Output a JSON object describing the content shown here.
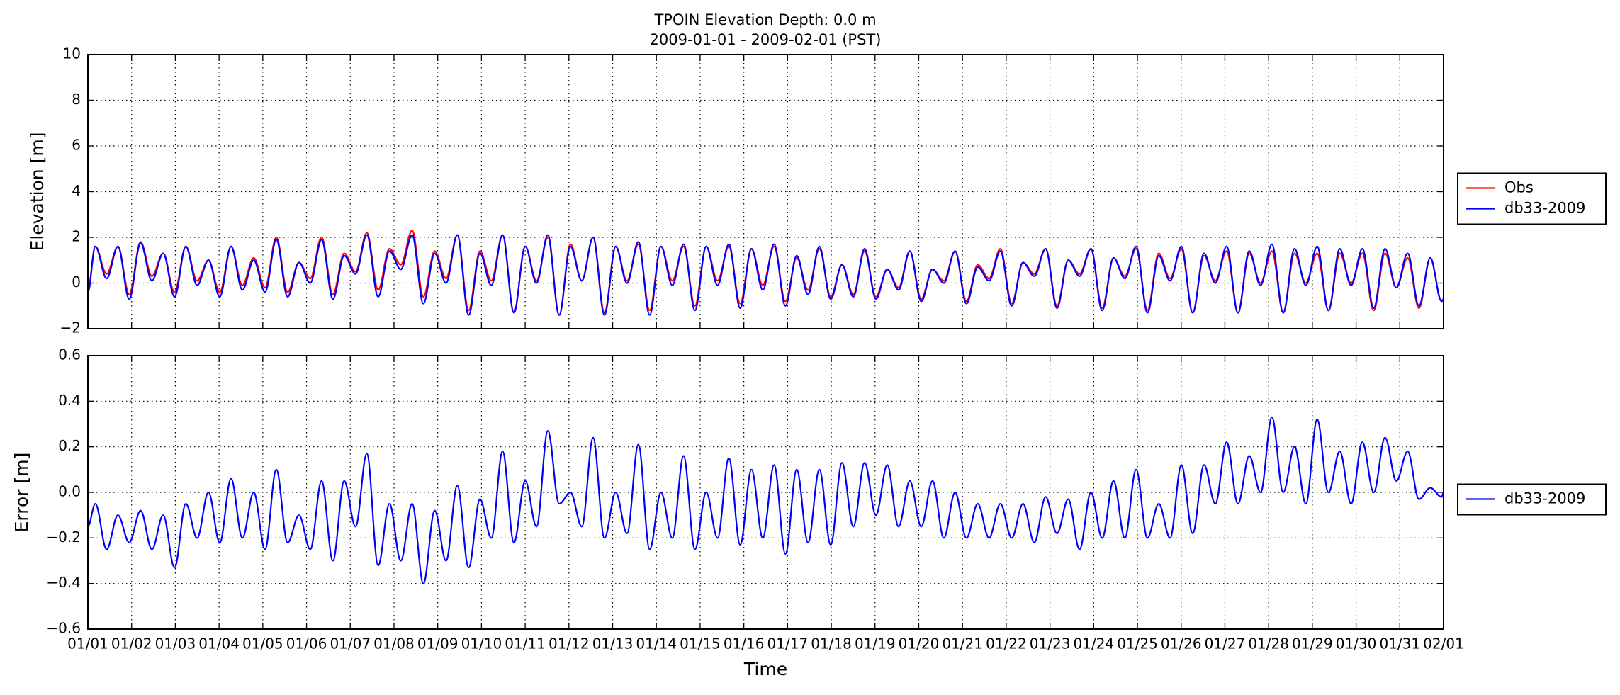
{
  "chart_data": [
    {
      "type": "line",
      "title": "TPOIN Elevation Depth: 0.0 m",
      "subtitle": "2009-01-01 - 2009-02-01 (PST)",
      "ylabel": "Elevation [m]",
      "xlim": [
        0,
        31
      ],
      "xticks": [
        0,
        1,
        2,
        3,
        4,
        5,
        6,
        7,
        8,
        9,
        10,
        11,
        12,
        13,
        14,
        15,
        16,
        17,
        18,
        19,
        20,
        21,
        22,
        23,
        24,
        25,
        26,
        27,
        28,
        29,
        30,
        31
      ],
      "ylim": [
        -2,
        10
      ],
      "yticks": [
        {
          "value": -2,
          "label": "−2"
        },
        0,
        2,
        4,
        6,
        8,
        10
      ],
      "grid": true,
      "legend": "outside right",
      "x": [
        0,
        0.17,
        0.429,
        0.687,
        0.946,
        1.205,
        1.464,
        1.722,
        1.981,
        2.24,
        2.498,
        2.757,
        3.016,
        3.274,
        3.533,
        3.792,
        4.051,
        4.309,
        4.568,
        4.827,
        5.085,
        5.344,
        5.603,
        5.861,
        6.12,
        6.379,
        6.638,
        6.896,
        7.155,
        7.414,
        7.672,
        7.931,
        8.19,
        8.448,
        8.707,
        8.966,
        9.225,
        9.483,
        9.742,
        10.001,
        10.259,
        10.518,
        10.777,
        11.035,
        11.294,
        11.553,
        11.812,
        12.07,
        12.329,
        12.588,
        12.846,
        13.105,
        13.364,
        13.622,
        13.881,
        14.14,
        14.399,
        14.657,
        14.916,
        15.175,
        15.433,
        15.692,
        15.951,
        16.209,
        16.468,
        16.727,
        16.986,
        17.244,
        17.503,
        17.762,
        18.02,
        18.279,
        18.538,
        18.796,
        19.055,
        19.314,
        19.573,
        19.831,
        20.09,
        20.349,
        20.607,
        20.866,
        21.125,
        21.383,
        21.642,
        21.901,
        22.16,
        22.418,
        22.677,
        22.936,
        23.194,
        23.453,
        23.712,
        23.97,
        24.229,
        24.488,
        24.747,
        25.005,
        25.264,
        25.523,
        25.781,
        26.04,
        26.299,
        26.557,
        26.816,
        27.075,
        27.334,
        27.592,
        27.851,
        28.11,
        28.368,
        28.627,
        28.886,
        29.144,
        29.403,
        29.662,
        29.921,
        30.179,
        30.438,
        30.697,
        30.955,
        31
      ],
      "series": [
        {
          "name": "Obs",
          "color": "#ff0000",
          "values": [
            -0.3,
            1.6,
            0.4,
            1.6,
            -0.5,
            1.8,
            0.3,
            1.3,
            -0.4,
            1.6,
            0.1,
            1.0,
            -0.4,
            1.6,
            -0.1,
            1.1,
            -0.2,
            2.0,
            -0.4,
            0.9,
            0.2,
            2.0,
            -0.5,
            1.3,
            0.5,
            2.2,
            -0.3,
            1.5,
            0.8,
            2.3,
            -0.6,
            1.4,
            0.2,
            2.1,
            -1.2,
            1.4,
            0.1,
            2.1,
            -1.3,
            1.6,
            0.1,
            2.0,
            -1.4,
            1.7,
            0.1,
            2.0,
            -1.3,
            1.6,
            0.1,
            1.7,
            -1.2,
            1.6,
            0.1,
            1.6,
            -1.0,
            1.6,
            0.1,
            1.6,
            -0.9,
            1.5,
            -0.1,
            1.6,
            -0.8,
            1.1,
            -0.3,
            1.5,
            -0.6,
            0.8,
            -0.5,
            1.4,
            -0.6,
            0.6,
            -0.2,
            1.4,
            -0.7,
            0.6,
            0.1,
            1.4,
            -0.8,
            0.8,
            0.2,
            1.5,
            -0.9,
            0.9,
            0.4,
            1.5,
            -1.0,
            1.0,
            0.4,
            1.5,
            -1.1,
            1.1,
            0.3,
            1.5,
            -1.2,
            1.3,
            0.2,
            1.5,
            -1.3,
            1.2,
            0.1,
            1.4,
            -1.3,
            1.3,
            0.0,
            1.4,
            -1.3,
            1.3,
            0.0,
            1.3,
            -1.2,
            1.3,
            0.0,
            1.3,
            -1.2,
            1.3,
            -0.2,
            1.1,
            -1.1,
            1.1,
            -0.8,
            -0.7
          ]
        },
        {
          "name": "db33-2009",
          "color": "#0000ff",
          "values": [
            -0.4,
            1.6,
            0.2,
            1.6,
            -0.7,
            1.75,
            0.1,
            1.3,
            -0.6,
            1.6,
            -0.1,
            1.0,
            -0.6,
            1.6,
            -0.3,
            1.0,
            -0.4,
            1.9,
            -0.6,
            0.9,
            0.0,
            1.9,
            -0.7,
            1.2,
            0.4,
            2.1,
            -0.6,
            1.4,
            0.6,
            2.1,
            -0.9,
            1.3,
            0.0,
            2.1,
            -1.4,
            1.3,
            -0.1,
            2.1,
            -1.3,
            1.6,
            0.0,
            2.1,
            -1.4,
            1.6,
            0.1,
            2.0,
            -1.4,
            1.6,
            0.0,
            1.8,
            -1.4,
            1.6,
            -0.1,
            1.7,
            -1.2,
            1.6,
            -0.1,
            1.7,
            -1.1,
            1.5,
            -0.3,
            1.7,
            -1.0,
            1.2,
            -0.5,
            1.6,
            -0.7,
            0.8,
            -0.6,
            1.5,
            -0.7,
            0.6,
            -0.3,
            1.4,
            -0.8,
            0.6,
            0.0,
            1.4,
            -0.9,
            0.7,
            0.1,
            1.4,
            -1.0,
            0.9,
            0.3,
            1.5,
            -1.1,
            1.0,
            0.3,
            1.5,
            -1.2,
            1.1,
            0.2,
            1.6,
            -1.3,
            1.2,
            0.1,
            1.6,
            -1.3,
            1.3,
            0.0,
            1.6,
            -1.3,
            1.4,
            -0.1,
            1.7,
            -1.3,
            1.5,
            -0.1,
            1.6,
            -1.2,
            1.5,
            -0.1,
            1.5,
            -1.1,
            1.5,
            -0.2,
            1.3,
            -1.0,
            1.1,
            -0.8,
            -0.7
          ]
        }
      ]
    },
    {
      "type": "line",
      "ylabel": "Error [m]",
      "xlabel": "Time",
      "xlim": [
        0,
        31
      ],
      "xticks": [
        {
          "value": 0,
          "label": "01/01"
        },
        {
          "value": 1,
          "label": "01/02"
        },
        {
          "value": 2,
          "label": "01/03"
        },
        {
          "value": 3,
          "label": "01/04"
        },
        {
          "value": 4,
          "label": "01/05"
        },
        {
          "value": 5,
          "label": "01/06"
        },
        {
          "value": 6,
          "label": "01/07"
        },
        {
          "value": 7,
          "label": "01/08"
        },
        {
          "value": 8,
          "label": "01/09"
        },
        {
          "value": 9,
          "label": "01/10"
        },
        {
          "value": 10,
          "label": "01/11"
        },
        {
          "value": 11,
          "label": "01/12"
        },
        {
          "value": 12,
          "label": "01/13"
        },
        {
          "value": 13,
          "label": "01/14"
        },
        {
          "value": 14,
          "label": "01/15"
        },
        {
          "value": 15,
          "label": "01/16"
        },
        {
          "value": 16,
          "label": "01/17"
        },
        {
          "value": 17,
          "label": "01/18"
        },
        {
          "value": 18,
          "label": "01/19"
        },
        {
          "value": 19,
          "label": "01/20"
        },
        {
          "value": 20,
          "label": "01/21"
        },
        {
          "value": 21,
          "label": "01/22"
        },
        {
          "value": 22,
          "label": "01/23"
        },
        {
          "value": 23,
          "label": "01/24"
        },
        {
          "value": 24,
          "label": "01/25"
        },
        {
          "value": 25,
          "label": "01/26"
        },
        {
          "value": 26,
          "label": "01/27"
        },
        {
          "value": 27,
          "label": "01/28"
        },
        {
          "value": 28,
          "label": "01/29"
        },
        {
          "value": 29,
          "label": "01/30"
        },
        {
          "value": 30,
          "label": "01/31"
        },
        {
          "value": 31,
          "label": "02/01"
        }
      ],
      "ylim": [
        -0.6,
        0.6
      ],
      "yticks": [
        {
          "value": -0.6,
          "label": "−0.6"
        },
        {
          "value": -0.4,
          "label": "−0.4"
        },
        {
          "value": -0.2,
          "label": "−0.2"
        },
        {
          "value": 0,
          "label": "0.0"
        },
        0.2,
        0.4,
        0.6
      ],
      "grid": true,
      "legend": "outside right",
      "x": [
        0,
        0.17,
        0.429,
        0.687,
        0.946,
        1.205,
        1.464,
        1.722,
        1.981,
        2.24,
        2.498,
        2.757,
        3.016,
        3.274,
        3.533,
        3.792,
        4.051,
        4.309,
        4.568,
        4.827,
        5.085,
        5.344,
        5.603,
        5.861,
        6.12,
        6.379,
        6.638,
        6.896,
        7.155,
        7.414,
        7.672,
        7.931,
        8.19,
        8.448,
        8.707,
        8.966,
        9.225,
        9.483,
        9.742,
        10.001,
        10.259,
        10.518,
        10.777,
        11.035,
        11.294,
        11.553,
        11.812,
        12.07,
        12.329,
        12.588,
        12.846,
        13.105,
        13.364,
        13.622,
        13.881,
        14.14,
        14.399,
        14.657,
        14.916,
        15.175,
        15.433,
        15.692,
        15.951,
        16.209,
        16.468,
        16.727,
        16.986,
        17.244,
        17.503,
        17.762,
        18.02,
        18.279,
        18.538,
        18.796,
        19.055,
        19.314,
        19.573,
        19.831,
        20.09,
        20.349,
        20.607,
        20.866,
        21.125,
        21.383,
        21.642,
        21.901,
        22.16,
        22.418,
        22.677,
        22.936,
        23.194,
        23.453,
        23.712,
        23.97,
        24.229,
        24.488,
        24.747,
        25.005,
        25.264,
        25.523,
        25.781,
        26.04,
        26.299,
        26.557,
        26.816,
        27.075,
        27.334,
        27.592,
        27.851,
        28.11,
        28.368,
        28.627,
        28.886,
        29.144,
        29.403,
        29.662,
        29.921,
        30.179,
        30.438,
        30.697,
        30.955,
        31
      ],
      "series": [
        {
          "name": "db33-2009",
          "color": "#0000ff",
          "values": [
            -0.15,
            -0.05,
            -0.25,
            -0.1,
            -0.22,
            -0.08,
            -0.25,
            -0.1,
            -0.33,
            -0.05,
            -0.2,
            0.0,
            -0.22,
            0.06,
            -0.2,
            0.0,
            -0.25,
            0.1,
            -0.22,
            -0.1,
            -0.25,
            0.05,
            -0.3,
            0.05,
            -0.15,
            0.17,
            -0.32,
            -0.05,
            -0.3,
            -0.05,
            -0.4,
            -0.08,
            -0.3,
            0.03,
            -0.33,
            -0.03,
            -0.2,
            0.18,
            -0.22,
            0.05,
            -0.15,
            0.27,
            -0.05,
            0.0,
            -0.15,
            0.24,
            -0.2,
            0.0,
            -0.18,
            0.21,
            -0.25,
            0.0,
            -0.2,
            0.16,
            -0.25,
            0.0,
            -0.2,
            0.15,
            -0.23,
            0.1,
            -0.2,
            0.12,
            -0.27,
            0.1,
            -0.22,
            0.1,
            -0.23,
            0.13,
            -0.15,
            0.13,
            -0.1,
            0.12,
            -0.15,
            0.05,
            -0.15,
            0.05,
            -0.2,
            0.0,
            -0.2,
            -0.05,
            -0.2,
            -0.05,
            -0.2,
            -0.05,
            -0.22,
            -0.02,
            -0.18,
            -0.03,
            -0.25,
            0.0,
            -0.2,
            0.05,
            -0.2,
            0.1,
            -0.2,
            -0.05,
            -0.2,
            0.12,
            -0.18,
            0.12,
            -0.05,
            0.22,
            -0.05,
            0.16,
            0.0,
            0.33,
            0.0,
            0.2,
            -0.05,
            0.32,
            0.0,
            0.18,
            -0.05,
            0.22,
            0.0,
            0.24,
            0.05,
            0.18,
            -0.03,
            0.02,
            -0.02,
            0.0
          ]
        }
      ]
    }
  ]
}
